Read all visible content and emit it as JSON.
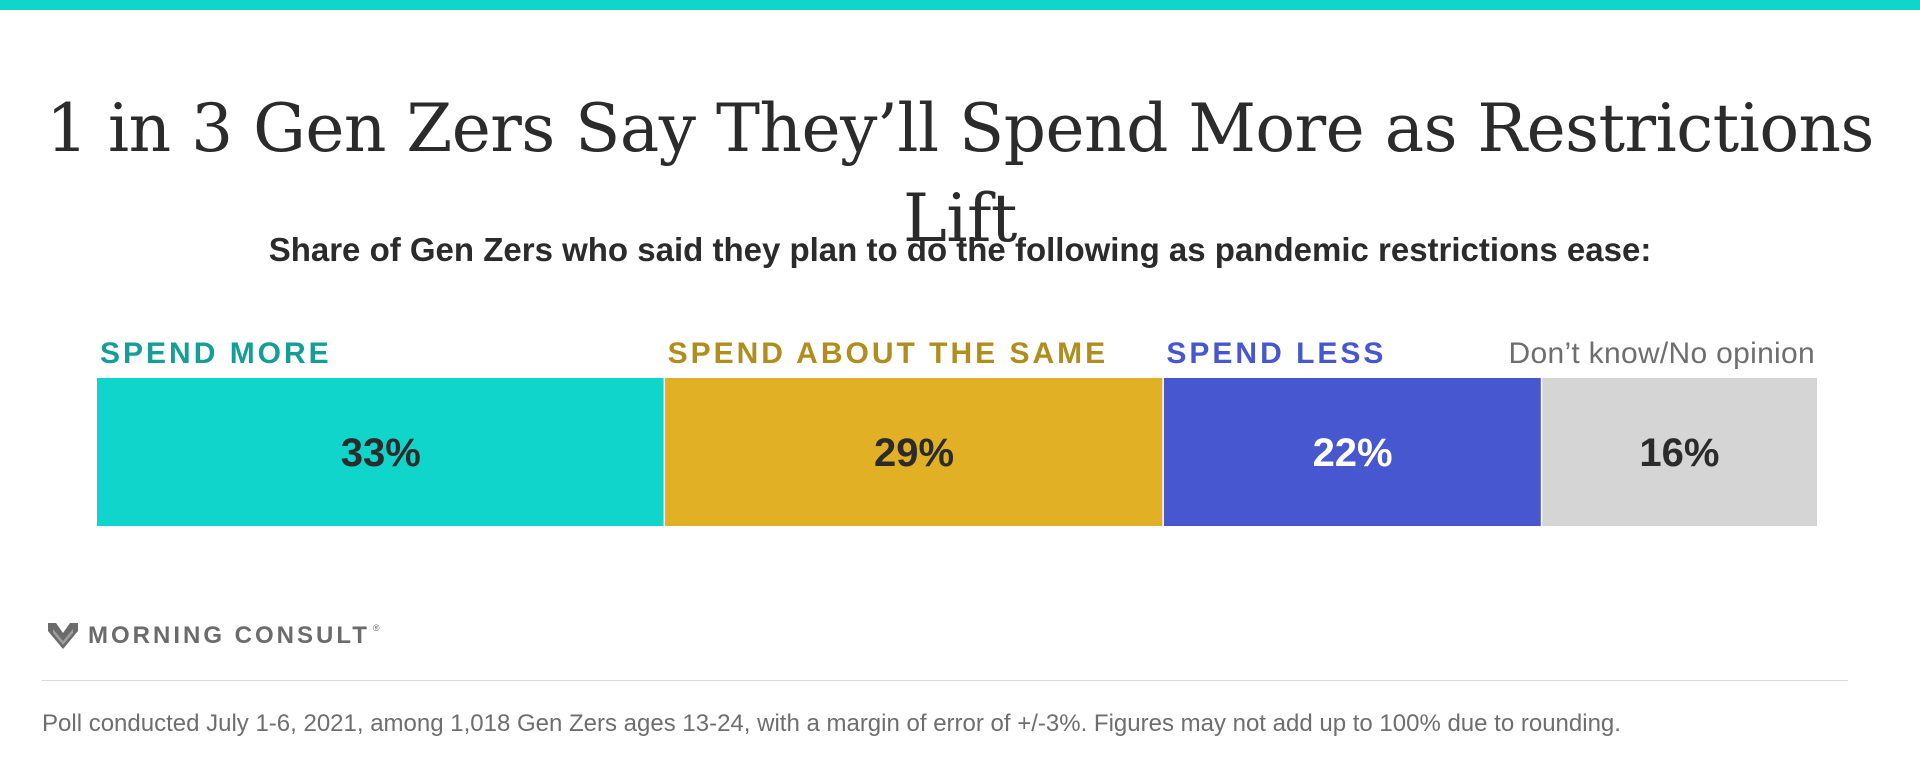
{
  "colors": {
    "accent": "#0fd5cb",
    "text_dark": "#2b2b2b",
    "text_gray": "#6e6e6e"
  },
  "title": "1 in 3 Gen Zers Say They’ll Spend More as Restrictions Lift",
  "subtitle": "Share of Gen Zers who said they plan to do the following as pandemic restrictions ease:",
  "chart_data": {
    "type": "bar",
    "orientation": "horizontal-stacked",
    "categories": [
      "SPEND MORE",
      "SPEND ABOUT THE SAME",
      "SPEND LESS",
      "Don’t know/No opinion"
    ],
    "values": [
      33,
      29,
      22,
      16
    ],
    "value_labels": [
      "33%",
      "29%",
      "22%",
      "16%"
    ],
    "segment_colors": [
      "#0fd5cb",
      "#e1b024",
      "#4657d0",
      "#d5d5d5"
    ],
    "label_colors": [
      "#149e96",
      "#b08d1c",
      "#4657d0",
      "#6e6e6e"
    ],
    "value_text_colors": [
      "#2b2b2b",
      "#2b2b2b",
      "#ffffff",
      "#2b2b2b"
    ],
    "xlim": [
      0,
      100
    ],
    "grid": false,
    "legend": "none"
  },
  "brand": {
    "name": "MORNING CONSULT",
    "mark": "®",
    "icon": "morning-consult-logo-icon"
  },
  "footnote": "Poll conducted July 1-6, 2021, among 1,018 Gen Zers ages 13-24, with a margin of error of +/-3%. Figures may not add up to 100% due to rounding."
}
